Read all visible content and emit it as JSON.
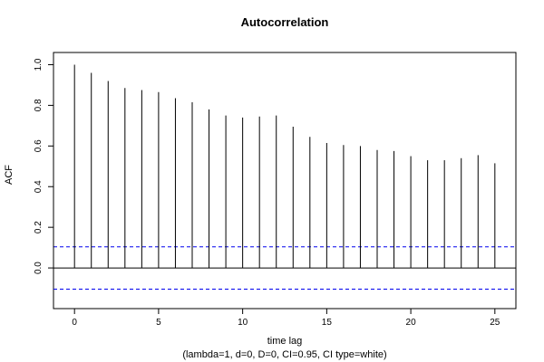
{
  "chart_data": {
    "type": "bar",
    "title": "Autocorrelation",
    "xlabel": "time lag",
    "subtitle": "(lambda=1, d=0, D=0, CI=0.95, CI type=white)",
    "ylabel": "ACF",
    "xlim": [
      -1.25,
      26.25
    ],
    "ylim": [
      -0.2,
      1.06
    ],
    "xticks": [
      0,
      5,
      10,
      15,
      20,
      25
    ],
    "yticks": [
      0.0,
      0.2,
      0.4,
      0.6,
      0.8,
      1.0
    ],
    "ytick_labels": [
      "0.0",
      "0.2",
      "0.4",
      "0.6",
      "0.8",
      "1.0"
    ],
    "lags": [
      0,
      1,
      2,
      3,
      4,
      5,
      6,
      7,
      8,
      9,
      10,
      11,
      12,
      13,
      14,
      15,
      16,
      17,
      18,
      19,
      20,
      21,
      22,
      23,
      24,
      25
    ],
    "values": [
      1.0,
      0.96,
      0.92,
      0.885,
      0.875,
      0.865,
      0.835,
      0.815,
      0.78,
      0.75,
      0.74,
      0.745,
      0.75,
      0.695,
      0.645,
      0.615,
      0.605,
      0.6,
      0.58,
      0.575,
      0.55,
      0.53,
      0.53,
      0.54,
      0.555,
      0.515
    ],
    "ci_upper": 0.104,
    "ci_lower": -0.104,
    "ci_color": "#0000ee",
    "line_color": "#000000"
  }
}
